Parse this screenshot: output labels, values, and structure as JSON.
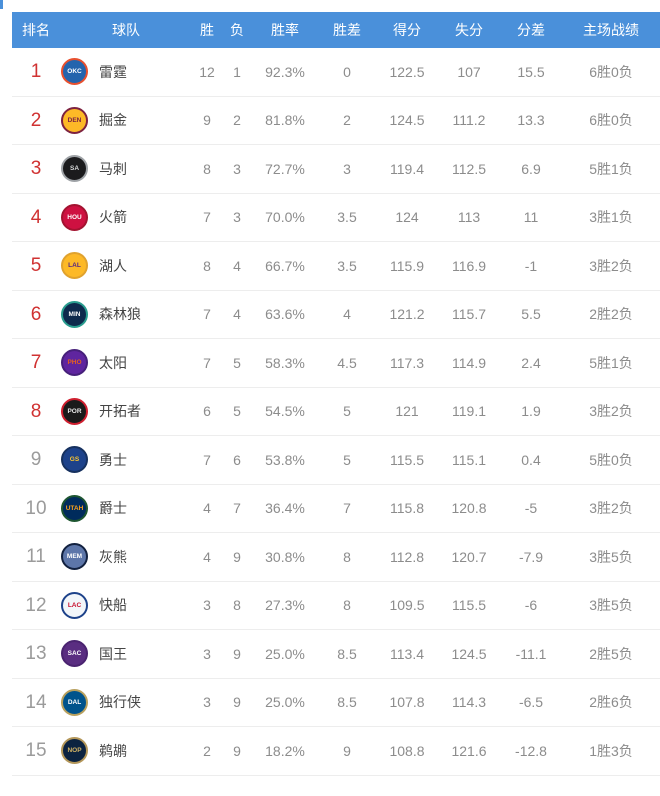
{
  "accent_colors": {
    "header_blue": "#4a90da",
    "rank_red": "#d03232",
    "rank_gray": "#9b9b9b",
    "value_gray": "#8c8c8c",
    "divider": "#ededed"
  },
  "table": {
    "header": {
      "bg": "#4a90da",
      "columns": {
        "rank": "排名",
        "team": "球队",
        "win": "胜",
        "loss": "负",
        "pct": "胜率",
        "gb": "胜差",
        "pf": "得分",
        "pa": "失分",
        "diff": "分差",
        "home": "主场战绩"
      }
    },
    "rank_colors": {
      "top": "#d03232",
      "rest": "#9b9b9b"
    },
    "rows": [
      {
        "rank": "1",
        "team": "雷霆",
        "abbr": "OKC",
        "logo": {
          "ring": "#e8502e",
          "bg": "#2464ad",
          "fg": "#ffffff"
        },
        "highlight": true,
        "win": "12",
        "loss": "1",
        "pct": "92.3%",
        "gb": "0",
        "pf": "122.5",
        "pa": "107",
        "diff": "15.5",
        "home": "6胜0负"
      },
      {
        "rank": "2",
        "team": "掘金",
        "abbr": "DEN",
        "logo": {
          "ring": "#7d2240",
          "bg": "#fdb927",
          "fg": "#7d2240"
        },
        "highlight": true,
        "win": "9",
        "loss": "2",
        "pct": "81.8%",
        "gb": "2",
        "pf": "124.5",
        "pa": "111.2",
        "diff": "13.3",
        "home": "6胜0负"
      },
      {
        "rank": "3",
        "team": "马刺",
        "abbr": "SA",
        "logo": {
          "ring": "#9ea2a6",
          "bg": "#1b1b1d",
          "fg": "#d7d9da"
        },
        "highlight": true,
        "win": "8",
        "loss": "3",
        "pct": "72.7%",
        "gb": "3",
        "pf": "119.4",
        "pa": "112.5",
        "diff": "6.9",
        "home": "5胜1负"
      },
      {
        "rank": "4",
        "team": "火箭",
        "abbr": "HOU",
        "logo": {
          "ring": "#a31330",
          "bg": "#ce1141",
          "fg": "#ffffff"
        },
        "highlight": true,
        "win": "7",
        "loss": "3",
        "pct": "70.0%",
        "gb": "3.5",
        "pf": "124",
        "pa": "113",
        "diff": "11",
        "home": "3胜1负"
      },
      {
        "rank": "5",
        "team": "湖人",
        "abbr": "LAL",
        "logo": {
          "ring": "#e0a22e",
          "bg": "#fdb927",
          "fg": "#552583"
        },
        "highlight": true,
        "win": "8",
        "loss": "4",
        "pct": "66.7%",
        "gb": "3.5",
        "pf": "115.9",
        "pa": "116.9",
        "diff": "-1",
        "home": "3胜2负"
      },
      {
        "rank": "6",
        "team": "森林狼",
        "abbr": "MIN",
        "logo": {
          "ring": "#2a9d8f",
          "bg": "#0e2a4d",
          "fg": "#ffffff"
        },
        "highlight": true,
        "win": "7",
        "loss": "4",
        "pct": "63.6%",
        "gb": "4",
        "pf": "121.2",
        "pa": "115.7",
        "diff": "5.5",
        "home": "2胜2负"
      },
      {
        "rank": "7",
        "team": "太阳",
        "abbr": "PHO",
        "logo": {
          "ring": "#46207a",
          "bg": "#5f259f",
          "fg": "#e56020"
        },
        "highlight": true,
        "win": "7",
        "loss": "5",
        "pct": "58.3%",
        "gb": "4.5",
        "pf": "117.3",
        "pa": "114.9",
        "diff": "2.4",
        "home": "5胜1负"
      },
      {
        "rank": "8",
        "team": "开拓者",
        "abbr": "POR",
        "logo": {
          "ring": "#cf1f2f",
          "bg": "#1a1a1a",
          "fg": "#e8e8e8"
        },
        "highlight": true,
        "win": "6",
        "loss": "5",
        "pct": "54.5%",
        "gb": "5",
        "pf": "121",
        "pa": "119.1",
        "diff": "1.9",
        "home": "3胜2负"
      },
      {
        "rank": "9",
        "team": "勇士",
        "abbr": "GS",
        "logo": {
          "ring": "#16315f",
          "bg": "#1d428a",
          "fg": "#ffc72c"
        },
        "highlight": false,
        "win": "7",
        "loss": "6",
        "pct": "53.8%",
        "gb": "5",
        "pf": "115.5",
        "pa": "115.1",
        "diff": "0.4",
        "home": "5胜0负"
      },
      {
        "rank": "10",
        "team": "爵士",
        "abbr": "UTAH",
        "logo": {
          "ring": "#1e5631",
          "bg": "#002b5c",
          "fg": "#f9a01b"
        },
        "highlight": false,
        "win": "4",
        "loss": "7",
        "pct": "36.4%",
        "gb": "7",
        "pf": "115.8",
        "pa": "120.8",
        "diff": "-5",
        "home": "3胜2负"
      },
      {
        "rank": "11",
        "team": "灰熊",
        "abbr": "MEM",
        "logo": {
          "ring": "#12213f",
          "bg": "#5d76a9",
          "fg": "#ffffff"
        },
        "highlight": false,
        "win": "4",
        "loss": "9",
        "pct": "30.8%",
        "gb": "8",
        "pf": "112.8",
        "pa": "120.7",
        "diff": "-7.9",
        "home": "3胜5负"
      },
      {
        "rank": "12",
        "team": "快船",
        "abbr": "LAC",
        "logo": {
          "ring": "#1d428a",
          "bg": "#f2f6fa",
          "fg": "#c8102e"
        },
        "highlight": false,
        "win": "3",
        "loss": "8",
        "pct": "27.3%",
        "gb": "8",
        "pf": "109.5",
        "pa": "115.5",
        "diff": "-6",
        "home": "3胜5负"
      },
      {
        "rank": "13",
        "team": "国王",
        "abbr": "SAC",
        "logo": {
          "ring": "#4a2370",
          "bg": "#5a2d81",
          "fg": "#ffffff"
        },
        "highlight": false,
        "win": "3",
        "loss": "9",
        "pct": "25.0%",
        "gb": "8.5",
        "pf": "113.4",
        "pa": "124.5",
        "diff": "-11.1",
        "home": "2胜5负"
      },
      {
        "rank": "14",
        "team": "独行侠",
        "abbr": "DAL",
        "logo": {
          "ring": "#b8a05e",
          "bg": "#00538c",
          "fg": "#ffffff"
        },
        "highlight": false,
        "win": "3",
        "loss": "9",
        "pct": "25.0%",
        "gb": "8.5",
        "pf": "107.8",
        "pa": "114.3",
        "diff": "-6.5",
        "home": "2胜6负"
      },
      {
        "rank": "15",
        "team": "鹈鹕",
        "abbr": "NOP",
        "logo": {
          "ring": "#b4975a",
          "bg": "#0c2340",
          "fg": "#d4b464"
        },
        "highlight": false,
        "win": "2",
        "loss": "9",
        "pct": "18.2%",
        "gb": "9",
        "pf": "108.8",
        "pa": "121.6",
        "diff": "-12.8",
        "home": "1胜3负"
      }
    ]
  }
}
